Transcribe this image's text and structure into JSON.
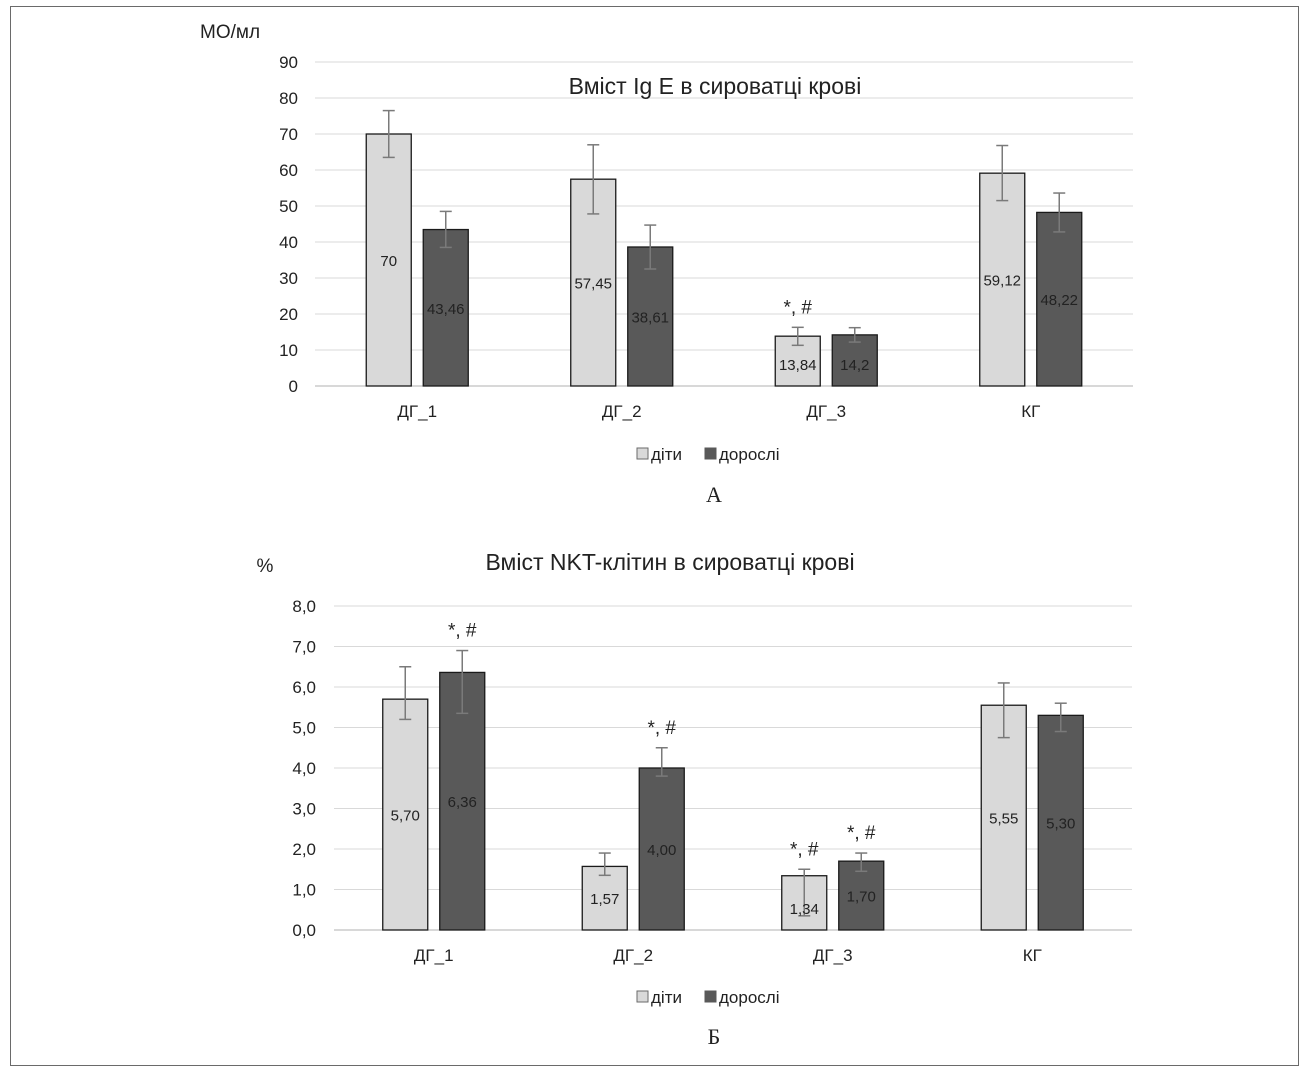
{
  "chart_data": [
    {
      "type": "bar",
      "panel_label": "А",
      "title": "Вміст Ig E в сироватці крові",
      "ylabel": "МО/мл",
      "xlabel": "",
      "ylim": [
        0,
        90
      ],
      "yticks": [
        "0",
        "10",
        "20",
        "30",
        "40",
        "50",
        "60",
        "70",
        "80",
        "90"
      ],
      "grid": true,
      "legend": "bottom",
      "categories": [
        "ДГ_1",
        "ДГ_2",
        "ДГ_3",
        "КГ"
      ],
      "series": [
        {
          "name": "діти",
          "color": "#d9d9d9",
          "values": [
            70,
            57.45,
            13.84,
            59.12
          ],
          "labels": [
            "70",
            "57,45",
            "13,84",
            "59,12"
          ],
          "error_low": [
            63.5,
            47.8,
            11.3,
            51.5
          ],
          "error_high": [
            76.5,
            67.0,
            16.3,
            66.8
          ],
          "annotations": [
            "",
            "",
            "*, #",
            ""
          ]
        },
        {
          "name": "дорослі",
          "color": "#595959",
          "values": [
            43.46,
            38.61,
            14.2,
            48.22
          ],
          "labels": [
            "43,46",
            "38,61",
            "14,2",
            "48,22"
          ],
          "error_low": [
            38.5,
            32.5,
            12.2,
            42.8
          ],
          "error_high": [
            48.5,
            44.7,
            16.2,
            53.6
          ],
          "annotations": [
            "",
            "",
            "",
            ""
          ]
        }
      ]
    },
    {
      "type": "bar",
      "panel_label": "Б",
      "title": "Вміст NKT-клітин в сироватці крові",
      "ylabel": "%",
      "xlabel": "",
      "ylim": [
        0,
        8
      ],
      "yticks": [
        "0,0",
        "1,0",
        "2,0",
        "3,0",
        "4,0",
        "5,0",
        "6,0",
        "7,0",
        "8,0"
      ],
      "grid": true,
      "legend": "bottom",
      "categories": [
        "ДГ_1",
        "ДГ_2",
        "ДГ_3",
        "КГ"
      ],
      "series": [
        {
          "name": "діти",
          "color": "#d9d9d9",
          "values": [
            5.7,
            1.57,
            1.34,
            5.55
          ],
          "labels": [
            "5,70",
            "1,57",
            "1,34",
            "5,55"
          ],
          "error_low": [
            5.2,
            1.35,
            0.35,
            4.75
          ],
          "error_high": [
            6.5,
            1.9,
            1.5,
            6.1
          ],
          "annotations": [
            "",
            "",
            "*, #",
            ""
          ]
        },
        {
          "name": "дорослі",
          "color": "#595959",
          "values": [
            6.36,
            4.0,
            1.7,
            5.3
          ],
          "labels": [
            "6,36",
            "4,00",
            "1,70",
            "5,30"
          ],
          "error_low": [
            5.35,
            3.8,
            1.45,
            4.9
          ],
          "error_high": [
            6.9,
            4.5,
            1.9,
            5.6
          ],
          "annotations": [
            "*, #",
            "*, #",
            "*, #",
            ""
          ]
        }
      ]
    }
  ]
}
